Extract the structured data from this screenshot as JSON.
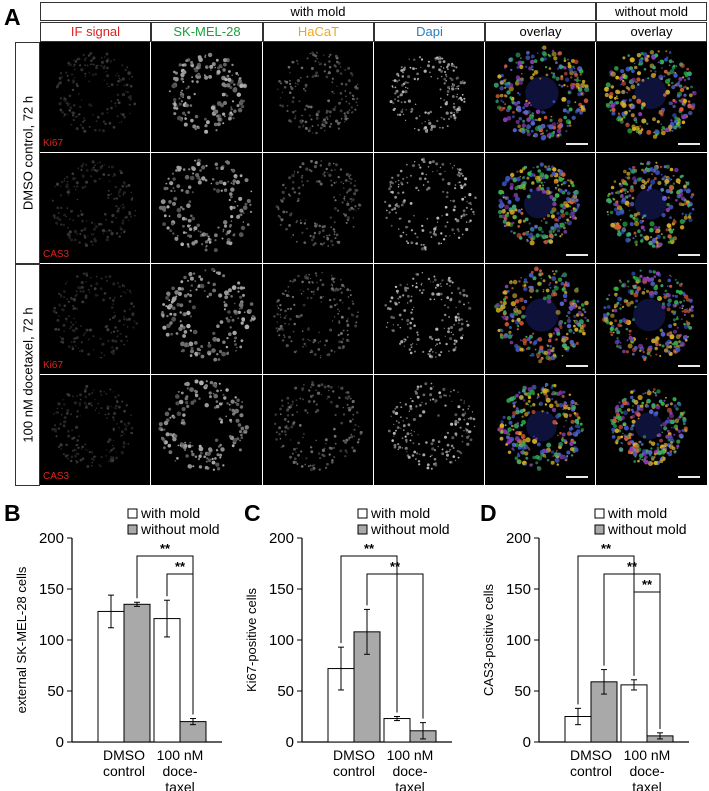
{
  "panel_letters": [
    "A",
    "B",
    "C",
    "D"
  ],
  "header": {
    "with_mold": "with mold",
    "without_mold": "without mold"
  },
  "columns": [
    {
      "label": "IF signal",
      "color": "#e0221c"
    },
    {
      "label": "SK-MEL-28",
      "color": "#1aa13a"
    },
    {
      "label": "HaCaT",
      "color": "#f0a818"
    },
    {
      "label": "Dapi",
      "color": "#2a7fb8"
    },
    {
      "label": "overlay",
      "color": "#000000"
    },
    {
      "label": "overlay",
      "color": "#000000"
    }
  ],
  "row_groups": [
    {
      "label": "DMSO control, 72 h"
    },
    {
      "label": "100 nM docetaxel, 72 h"
    }
  ],
  "rows": [
    {
      "stain": "Ki67"
    },
    {
      "stain": "CAS3"
    },
    {
      "stain": "Ki67"
    },
    {
      "stain": "CAS3"
    }
  ],
  "colors": {
    "with_mold_bar": "#ffffff",
    "without_mold_bar": "#a9a9a9",
    "stain_label": "#e0221c"
  },
  "chart_data": [
    {
      "panel": "B",
      "type": "bar",
      "ylabel": "external SK-MEL-28 cells",
      "ylim": [
        0,
        200
      ],
      "yticks": [
        0,
        50,
        100,
        150,
        200
      ],
      "categories": [
        [
          "DMSO",
          "control"
        ],
        [
          "100 nM",
          "doce-",
          "taxel"
        ]
      ],
      "series": [
        {
          "name": "with mold",
          "color": "#ffffff",
          "values": [
            128,
            121
          ],
          "errors": [
            16,
            18
          ]
        },
        {
          "name": "without mold",
          "color": "#a9a9a9",
          "values": [
            135,
            20
          ],
          "errors": [
            2,
            3
          ]
        }
      ],
      "legend": "top-right",
      "significance": [
        {
          "label": "**",
          "from": [
            0,
            1
          ],
          "to": [
            1,
            1
          ]
        },
        {
          "label": "**",
          "from": [
            1,
            0
          ],
          "to": [
            1,
            1
          ]
        }
      ]
    },
    {
      "panel": "C",
      "type": "bar",
      "ylabel": "Ki67-positive cells",
      "ylim": [
        0,
        200
      ],
      "yticks": [
        0,
        50,
        100,
        150,
        200
      ],
      "categories": [
        [
          "DMSO",
          "control"
        ],
        [
          "100 nM",
          "doce-",
          "taxel"
        ]
      ],
      "series": [
        {
          "name": "with mold",
          "color": "#ffffff",
          "values": [
            72,
            23
          ],
          "errors": [
            21,
            2
          ]
        },
        {
          "name": "without mold",
          "color": "#a9a9a9",
          "values": [
            108,
            11
          ],
          "errors": [
            22,
            8
          ]
        }
      ],
      "legend": "top-right",
      "significance": [
        {
          "label": "**",
          "from": [
            0,
            0
          ],
          "to": [
            1,
            0
          ]
        },
        {
          "label": "**",
          "from": [
            0,
            1
          ],
          "to": [
            1,
            1
          ]
        }
      ]
    },
    {
      "panel": "D",
      "type": "bar",
      "ylabel": "CAS3-positive cells",
      "ylim": [
        0,
        200
      ],
      "yticks": [
        0,
        50,
        100,
        150,
        200
      ],
      "categories": [
        [
          "DMSO",
          "control"
        ],
        [
          "100 nM",
          "doce-",
          "taxel"
        ]
      ],
      "series": [
        {
          "name": "with mold",
          "color": "#ffffff",
          "values": [
            25,
            56
          ],
          "errors": [
            8,
            5
          ]
        },
        {
          "name": "without mold",
          "color": "#a9a9a9",
          "values": [
            59,
            6
          ],
          "errors": [
            12,
            3
          ]
        }
      ],
      "legend": "top-right",
      "significance": [
        {
          "label": "**",
          "from": [
            0,
            0
          ],
          "to": [
            1,
            0
          ]
        },
        {
          "label": "**",
          "from": [
            0,
            1
          ],
          "to": [
            1,
            1
          ]
        },
        {
          "label": "**",
          "from": [
            1,
            0
          ],
          "to": [
            1,
            1
          ]
        }
      ]
    }
  ]
}
